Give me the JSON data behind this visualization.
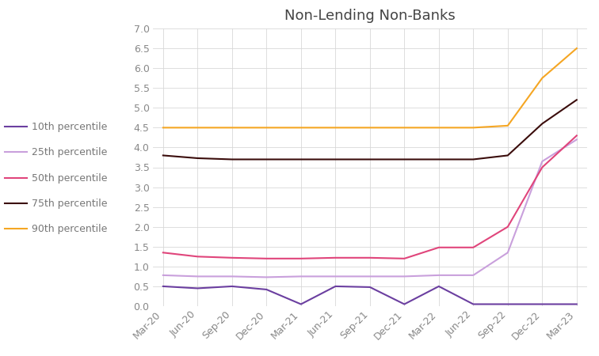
{
  "title": "Non-Lending Non-Banks",
  "x_labels": [
    "Mar-20",
    "Jun-20",
    "Sep-20",
    "Dec-20",
    "Mar-21",
    "Jun-21",
    "Sep-21",
    "Dec-21",
    "Mar-22",
    "Jun-22",
    "Sep-22",
    "Dec-22",
    "Mar-23"
  ],
  "series": {
    "10th percentile": {
      "color": "#6B3FA0",
      "values": [
        0.5,
        0.45,
        0.5,
        0.42,
        0.05,
        0.5,
        0.48,
        0.05,
        0.5,
        0.05,
        0.05,
        0.05,
        0.05
      ]
    },
    "25th percentile": {
      "color": "#C9A0DC",
      "values": [
        0.78,
        0.75,
        0.75,
        0.73,
        0.75,
        0.75,
        0.75,
        0.75,
        0.78,
        0.78,
        1.35,
        3.65,
        4.2
      ]
    },
    "50th percentile": {
      "color": "#E0457B",
      "values": [
        1.35,
        1.25,
        1.22,
        1.2,
        1.2,
        1.22,
        1.22,
        1.2,
        1.48,
        1.48,
        2.0,
        3.5,
        4.3
      ]
    },
    "75th percentile": {
      "color": "#3B0D0C",
      "values": [
        3.8,
        3.73,
        3.7,
        3.7,
        3.7,
        3.7,
        3.7,
        3.7,
        3.7,
        3.7,
        3.8,
        4.6,
        5.2
      ]
    },
    "90th percentile": {
      "color": "#F5A623",
      "values": [
        4.5,
        4.5,
        4.5,
        4.5,
        4.5,
        4.5,
        4.5,
        4.5,
        4.5,
        4.5,
        4.55,
        5.75,
        6.5
      ]
    }
  },
  "ylim": [
    0.0,
    7.0
  ],
  "yticks": [
    0.0,
    0.5,
    1.0,
    1.5,
    2.0,
    2.5,
    3.0,
    3.5,
    4.0,
    4.5,
    5.0,
    5.5,
    6.0,
    6.5,
    7.0
  ],
  "legend_order": [
    "10th percentile",
    "25th percentile",
    "50th percentile",
    "75th percentile",
    "90th percentile"
  ],
  "background_color": "#ffffff",
  "grid_color": "#d8d8d8",
  "title_fontsize": 13,
  "tick_fontsize": 9,
  "legend_fontsize": 9
}
